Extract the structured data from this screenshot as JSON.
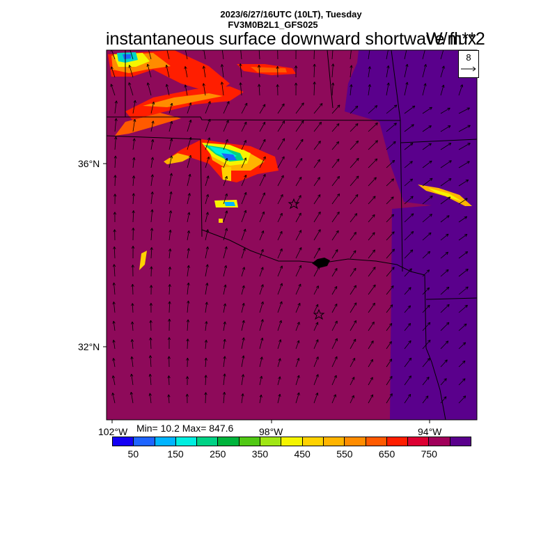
{
  "header": {
    "line1": "2023/6/27/16UTC (10LT), Tuesday",
    "line2": "FV3M0B2L1_GFS025",
    "title": "instantaneous surface downward shortwave flux",
    "units": "W/m**2"
  },
  "axes": {
    "lat_labels": [
      "36°N",
      "32°N"
    ],
    "lon_labels": [
      "102°W",
      "98°W",
      "94°W"
    ]
  },
  "stats": {
    "text": "Min= 10.2 Max= 847.6"
  },
  "vector_ref": {
    "value": "8"
  },
  "colorbar": {
    "colors": [
      "#1400f5",
      "#1e64ff",
      "#00b4ff",
      "#00eee0",
      "#00d285",
      "#00b43c",
      "#50c814",
      "#a0e614",
      "#f5f500",
      "#ffd200",
      "#ffb400",
      "#ff8c00",
      "#ff5a00",
      "#ff1e00",
      "#dc0032",
      "#a0005a",
      "#5a008c"
    ],
    "labels": [
      "50",
      "150",
      "250",
      "350",
      "450",
      "550",
      "650",
      "750"
    ]
  },
  "legend_colors": {
    "background": "#8e0a5a",
    "east_region": "#5a008c"
  }
}
